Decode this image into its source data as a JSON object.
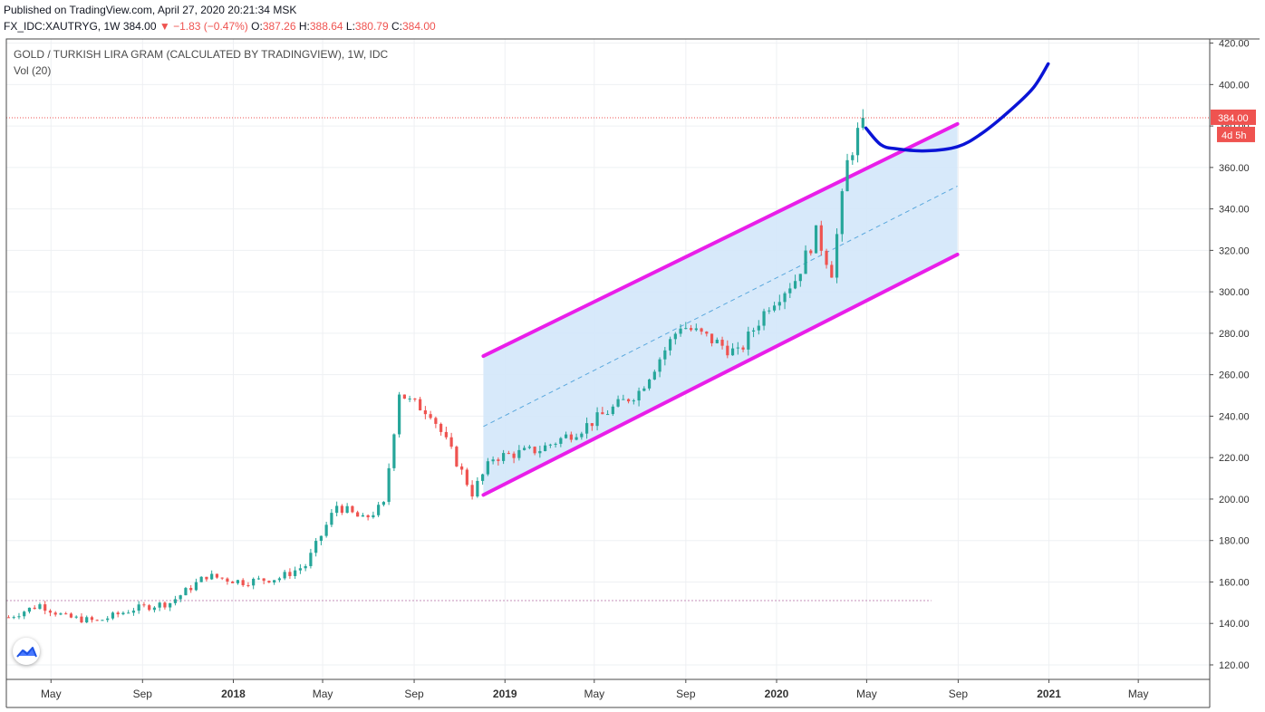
{
  "header": {
    "published_line": "Published on TradingView.com, April 27, 2020 20:21:34 MSK",
    "symbol": "FX_IDC:XAUTRYG, 1W",
    "last": "384.00",
    "change": "▼ −1.83 (−0.47%)",
    "o_label": "O:",
    "o_value": "387.26",
    "h_label": "H:",
    "h_value": "388.64",
    "l_label": "L:",
    "l_value": "380.79",
    "c_label": "C:",
    "c_value": "384.00"
  },
  "legend": {
    "title": "GOLD / TURKISH LIRA GRAM (CALCULATED BY TRADINGVIEW), 1W, IDC",
    "volume": "Vol (20)"
  },
  "colors": {
    "up": "#26a69a",
    "down": "#ef5350",
    "channel_line": "#e91ee9",
    "channel_fill": "#d3e7fa",
    "midline": "#5aa8dd",
    "drawing": "#0a14d6",
    "grid": "#eef0f3",
    "price_line": "#ef5350"
  },
  "icons": {
    "logo": "tradingview-logo-icon"
  },
  "chart_data": {
    "type": "candlestick",
    "ylim": [
      113,
      422
    ],
    "yticks": [
      "120.00",
      "140.00",
      "160.00",
      "180.00",
      "200.00",
      "220.00",
      "240.00",
      "260.00",
      "280.00",
      "300.00",
      "320.00",
      "340.00",
      "360.00",
      "380.00",
      "400.00",
      "420.00"
    ],
    "y_tick_values": [
      120,
      140,
      160,
      180,
      200,
      220,
      240,
      260,
      280,
      300,
      320,
      340,
      360,
      380,
      400,
      420
    ],
    "xlim": [
      "2017-03-02",
      "2021-08-05"
    ],
    "xticks": [
      {
        "label": "May",
        "date": "2017-05-01",
        "bold": false
      },
      {
        "label": "Sep",
        "date": "2017-09-01",
        "bold": false
      },
      {
        "label": "2018",
        "date": "2018-01-01",
        "bold": true
      },
      {
        "label": "May",
        "date": "2018-05-01",
        "bold": false
      },
      {
        "label": "Sep",
        "date": "2018-09-01",
        "bold": false
      },
      {
        "label": "2019",
        "date": "2019-01-01",
        "bold": true
      },
      {
        "label": "May",
        "date": "2019-05-01",
        "bold": false
      },
      {
        "label": "Sep",
        "date": "2019-09-01",
        "bold": false
      },
      {
        "label": "2020",
        "date": "2020-01-01",
        "bold": true
      },
      {
        "label": "May",
        "date": "2020-05-01",
        "bold": false
      },
      {
        "label": "Sep",
        "date": "2020-09-01",
        "bold": false
      },
      {
        "label": "2021",
        "date": "2021-01-01",
        "bold": true
      },
      {
        "label": "May",
        "date": "2021-05-01",
        "bold": false
      }
    ],
    "weekly_close": [
      {
        "date": "2017-03-05",
        "close": 143
      },
      {
        "date": "2017-04-16",
        "close": 149
      },
      {
        "date": "2017-05-21",
        "close": 143
      },
      {
        "date": "2017-07-02",
        "close": 141
      },
      {
        "date": "2017-08-20",
        "close": 147
      },
      {
        "date": "2017-10-08",
        "close": 150
      },
      {
        "date": "2017-11-26",
        "close": 163
      },
      {
        "date": "2018-01-14",
        "close": 160
      },
      {
        "date": "2018-03-04",
        "close": 162
      },
      {
        "date": "2018-04-08",
        "close": 168
      },
      {
        "date": "2018-05-20",
        "close": 197
      },
      {
        "date": "2018-06-24",
        "close": 190
      },
      {
        "date": "2018-07-22",
        "close": 197
      },
      {
        "date": "2018-08-12",
        "close": 252
      },
      {
        "date": "2018-08-26",
        "close": 247
      },
      {
        "date": "2018-09-23",
        "close": 242
      },
      {
        "date": "2018-10-28",
        "close": 218
      },
      {
        "date": "2018-11-18",
        "close": 203
      },
      {
        "date": "2018-12-16",
        "close": 220
      },
      {
        "date": "2019-02-17",
        "close": 224
      },
      {
        "date": "2019-04-14",
        "close": 234
      },
      {
        "date": "2019-06-30",
        "close": 252
      },
      {
        "date": "2019-08-25",
        "close": 284
      },
      {
        "date": "2019-09-29",
        "close": 278
      },
      {
        "date": "2019-11-10",
        "close": 270
      },
      {
        "date": "2019-12-22",
        "close": 294
      },
      {
        "date": "2020-01-26",
        "close": 306
      },
      {
        "date": "2020-02-23",
        "close": 328
      },
      {
        "date": "2020-03-15",
        "close": 310
      },
      {
        "date": "2020-04-05",
        "close": 362
      },
      {
        "date": "2020-04-26",
        "close": 384
      }
    ],
    "last_price": 384.0,
    "last_price_label": "384.00",
    "countdown_label": "4d 5h",
    "reference_line": {
      "price": 151,
      "from": "2017-03-02",
      "to": "2020-07-27"
    },
    "channel": {
      "start_date": "2018-12-03",
      "end_date": "2020-08-31",
      "upper": [
        269,
        381
      ],
      "lower": [
        202,
        318
      ],
      "mid": [
        235,
        351
      ]
    },
    "drawing_path": [
      {
        "date": "2020-04-30",
        "value": 379
      },
      {
        "date": "2020-05-20",
        "value": 371
      },
      {
        "date": "2020-06-10",
        "value": 369
      },
      {
        "date": "2020-07-20",
        "value": 368
      },
      {
        "date": "2020-08-31",
        "value": 370
      },
      {
        "date": "2020-10-01",
        "value": 376
      },
      {
        "date": "2020-11-05",
        "value": 386
      },
      {
        "date": "2020-12-10",
        "value": 398
      },
      {
        "date": "2020-12-31",
        "value": 410
      }
    ]
  }
}
